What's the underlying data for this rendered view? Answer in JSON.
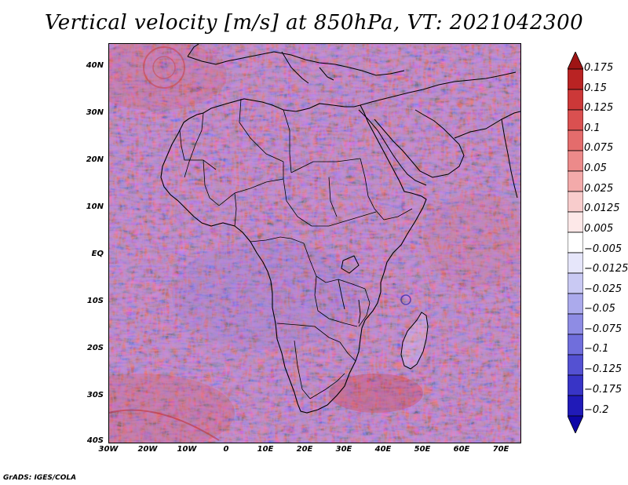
{
  "title": "Vertical velocity [m/s] at 850hPa, VT: 2021042300",
  "credit": "GrADS: IGES/COLA",
  "map": {
    "lon_range": [
      -30,
      75
    ],
    "lat_range": [
      -40,
      45
    ],
    "lat_ticks": [
      {
        "value": 40,
        "label": "40N"
      },
      {
        "value": 30,
        "label": "30N"
      },
      {
        "value": 20,
        "label": "20N"
      },
      {
        "value": 10,
        "label": "10N"
      },
      {
        "value": 0,
        "label": "EQ"
      },
      {
        "value": -10,
        "label": "10S"
      },
      {
        "value": -20,
        "label": "20S"
      },
      {
        "value": -30,
        "label": "30S"
      },
      {
        "value": -40,
        "label": "40S"
      }
    ],
    "lon_ticks": [
      {
        "value": -30,
        "label": "30W"
      },
      {
        "value": -20,
        "label": "20W"
      },
      {
        "value": -10,
        "label": "10W"
      },
      {
        "value": 0,
        "label": "0"
      },
      {
        "value": 10,
        "label": "10E"
      },
      {
        "value": 20,
        "label": "20E"
      },
      {
        "value": 30,
        "label": "30E"
      },
      {
        "value": 40,
        "label": "40E"
      },
      {
        "value": 50,
        "label": "50E"
      },
      {
        "value": 60,
        "label": "60E"
      },
      {
        "value": 70,
        "label": "70E"
      }
    ],
    "colors": {
      "ascent": "#d83c3c",
      "descent": "#6a6ae6",
      "neutral": "#f4f2ff",
      "outline": "#000000"
    }
  },
  "colorbar": {
    "levels": [
      "0.175",
      "0.15",
      "0.125",
      "0.1",
      "0.075",
      "0.05",
      "0.025",
      "0.0125",
      "0.005",
      "−0.005",
      "−0.0125",
      "−0.025",
      "−0.05",
      "−0.075",
      "−0.1",
      "−0.125",
      "−0.175",
      "−0.2"
    ],
    "colors": [
      "#9e1414",
      "#b92323",
      "#cc3838",
      "#da5050",
      "#e46c6c",
      "#ec8a8a",
      "#f3aaaa",
      "#f8cccc",
      "#fde8e8",
      "#ffffff",
      "#e6e6fa",
      "#c9c9f3",
      "#abaaec",
      "#8e8ce4",
      "#706edc",
      "#5451d2",
      "#3834c6",
      "#201ab8",
      "#0e06a6"
    ]
  }
}
